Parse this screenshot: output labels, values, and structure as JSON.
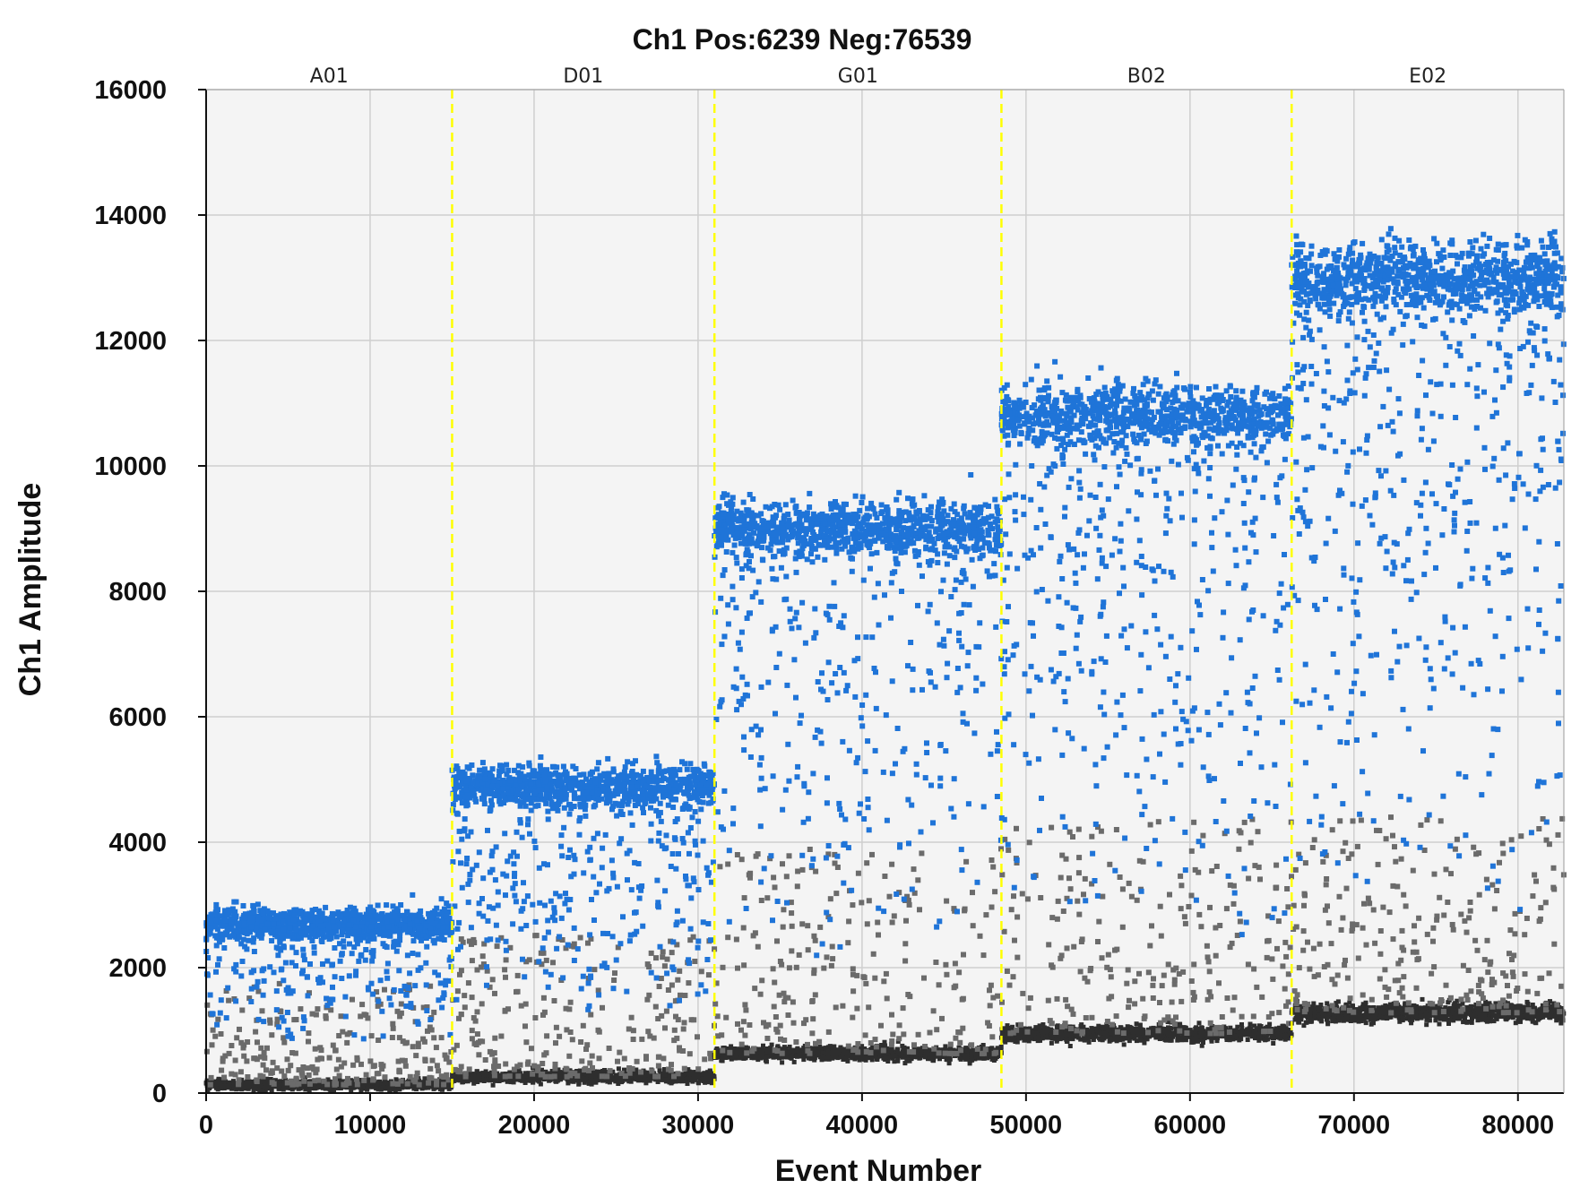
{
  "chart_data": {
    "type": "scatter",
    "title": "Ch1 Pos:6239 Neg:76539",
    "xlabel": "Event Number",
    "ylabel": "Ch1 Amplitude",
    "xlim": [
      0,
      82800
    ],
    "ylim": [
      0,
      16000
    ],
    "x_ticks": [
      0,
      10000,
      20000,
      30000,
      40000,
      50000,
      60000,
      70000,
      80000
    ],
    "y_ticks": [
      0,
      2000,
      4000,
      6000,
      8000,
      10000,
      12000,
      14000,
      16000
    ],
    "grid": true,
    "positive_color": "#1f74d8",
    "negative_color": "#555555",
    "well_divider_color": "#ffff00",
    "plot_background": "#f4f4f4",
    "wells": [
      {
        "name": "A01",
        "start": 0,
        "end": 15000,
        "positive_band": 2700,
        "negative_band": 130
      },
      {
        "name": "D01",
        "start": 15000,
        "end": 31000,
        "positive_band": 4900,
        "negative_band": 260
      },
      {
        "name": "G01",
        "start": 31000,
        "end": 48500,
        "positive_band": 9000,
        "negative_band": 630
      },
      {
        "name": "B02",
        "start": 48500,
        "end": 66200,
        "positive_band": 10800,
        "negative_band": 950
      },
      {
        "name": "E02",
        "start": 66200,
        "end": 82800,
        "positive_band": 13000,
        "negative_band": 1280
      }
    ]
  }
}
